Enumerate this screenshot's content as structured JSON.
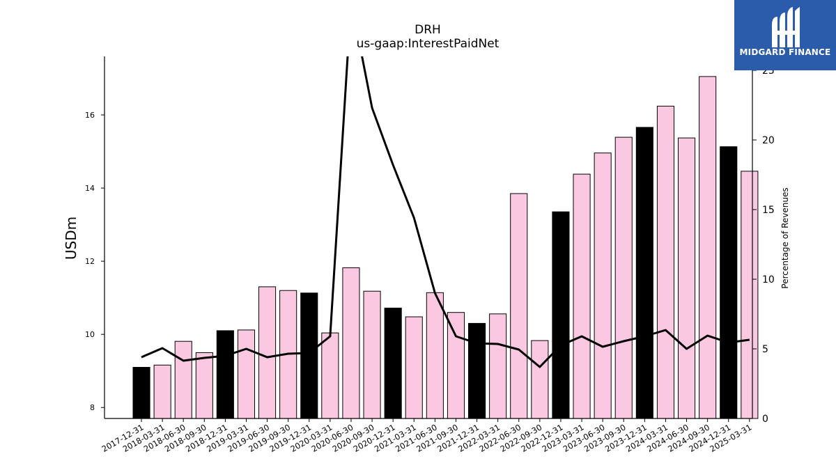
{
  "chart_data": {
    "type": "bar",
    "title": "DRH",
    "subtitle": "us-gaap:InterestPaidNet",
    "ylabel": "USDm",
    "ylabel_right": "Percentage of Revenues",
    "ylim": [
      7.7,
      17.6
    ],
    "y2lim": [
      0,
      25
    ],
    "yticks": [
      8,
      10,
      12,
      14,
      16
    ],
    "y2ticks": [
      0,
      5,
      10,
      15,
      20,
      25
    ],
    "categories": [
      "2017-12-31",
      "2018-03-31",
      "2018-06-30",
      "2018-09-30",
      "2018-12-31",
      "2019-03-31",
      "2019-06-30",
      "2019-09-30",
      "2019-12-31",
      "2020-03-31",
      "2020-06-30",
      "2020-09-30",
      "2020-12-31",
      "2021-03-31",
      "2021-06-30",
      "2021-09-30",
      "2021-12-31",
      "2022-03-31",
      "2022-06-30",
      "2022-09-30",
      "2022-12-31",
      "2023-03-31",
      "2023-06-30",
      "2023-09-30",
      "2023-12-31",
      "2024-03-31",
      "2024-06-30",
      "2024-09-30",
      "2024-12-31",
      "2025-03-31"
    ],
    "series": [
      {
        "values": [
          9.1,
          9.16,
          9.81,
          9.5,
          10.1,
          10.12,
          11.3,
          11.2,
          11.13,
          10.04,
          11.82,
          11.18,
          10.72,
          10.48,
          11.14,
          10.6,
          10.3,
          10.56,
          13.85,
          9.83,
          13.35,
          14.38,
          14.96,
          15.39,
          15.66,
          16.24,
          15.37,
          17.05,
          15.13,
          14.46
        ],
        "colors": [
          "#000000",
          "#fbc8e1",
          "#fbc8e1",
          "#fbc8e1",
          "#000000",
          "#fbc8e1",
          "#fbc8e1",
          "#fbc8e1",
          "#000000",
          "#fbc8e1",
          "#fbc8e1",
          "#fbc8e1",
          "#000000",
          "#fbc8e1",
          "#fbc8e1",
          "#fbc8e1",
          "#000000",
          "#fbc8e1",
          "#fbc8e1",
          "#fbc8e1",
          "#000000",
          "#fbc8e1",
          "#fbc8e1",
          "#fbc8e1",
          "#000000",
          "#fbc8e1",
          "#fbc8e1",
          "#fbc8e1",
          "#000000",
          "#fbc8e1"
        ]
      },
      {
        "axis": "right",
        "type": "line",
        "values": [
          4.4,
          5.05,
          4.15,
          4.35,
          4.5,
          5.0,
          4.4,
          4.65,
          4.7,
          5.9,
          30.0,
          22.3,
          18.2,
          14.4,
          9.0,
          5.9,
          5.4,
          5.35,
          4.95,
          3.7,
          5.25,
          5.9,
          5.15,
          5.55,
          5.9,
          6.35,
          5.0,
          5.95,
          5.45,
          5.65
        ]
      }
    ]
  },
  "logo": {
    "text": "MIDGARD FINANCE"
  }
}
